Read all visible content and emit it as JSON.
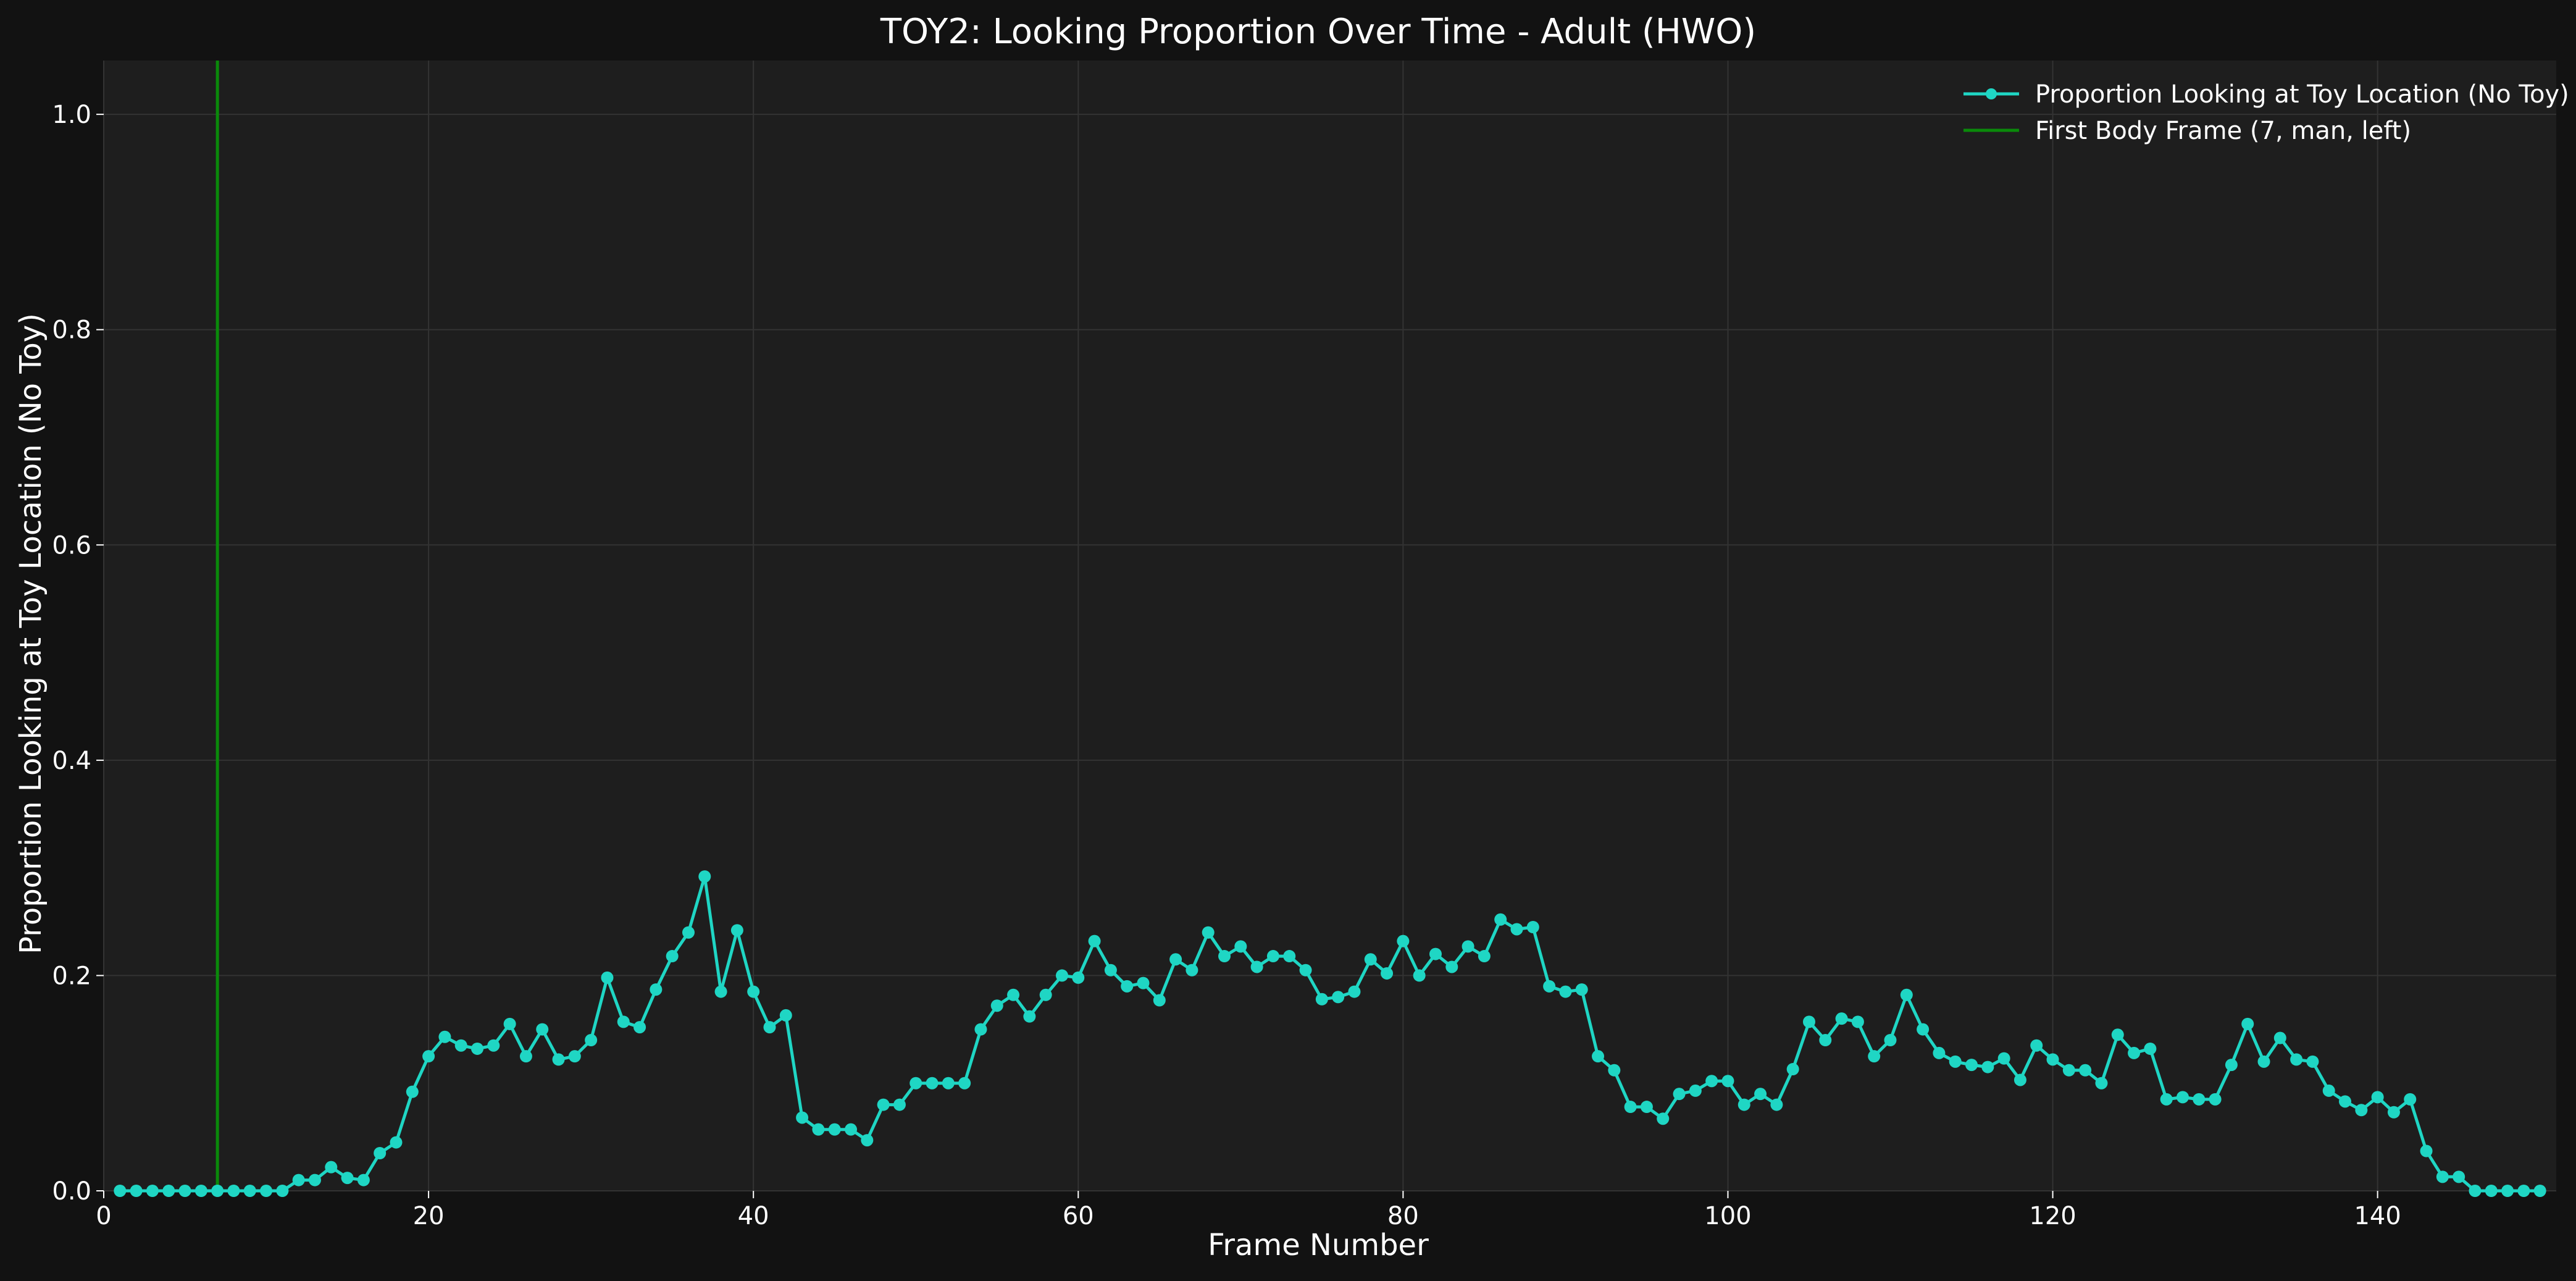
{
  "chart_data": {
    "type": "line",
    "title": "TOY2: Looking Proportion Over Time - Adult (HWO)",
    "xlabel": "Frame Number",
    "ylabel": "Proportion Looking at Toy Location (No Toy)",
    "xlim": [
      0,
      151
    ],
    "ylim": [
      0,
      1.05
    ],
    "xticks": [
      0,
      20,
      40,
      60,
      80,
      100,
      120,
      140
    ],
    "yticks": [
      0.0,
      0.2,
      0.4,
      0.6,
      0.8,
      1.0
    ],
    "xtick_labels": [
      "0",
      "20",
      "40",
      "60",
      "80",
      "100",
      "120",
      "140"
    ],
    "ytick_labels": [
      "0.0",
      "0.2",
      "0.4",
      "0.6",
      "0.8",
      "1.0"
    ],
    "grid": true,
    "legend_position": "top-right",
    "colors": {
      "background": "#121212",
      "plot_background": "#1e1e1e",
      "grid": "#333333",
      "series": "#1fd6c4",
      "vline": "#0a8a0a"
    },
    "series": [
      {
        "name": "Proportion Looking at Toy Location (No Toy)",
        "x": [
          1,
          2,
          3,
          4,
          5,
          6,
          7,
          8,
          9,
          10,
          11,
          12,
          13,
          14,
          15,
          16,
          17,
          18,
          19,
          20,
          21,
          22,
          23,
          24,
          25,
          26,
          27,
          28,
          29,
          30,
          31,
          32,
          33,
          34,
          35,
          36,
          37,
          38,
          39,
          40,
          41,
          42,
          43,
          44,
          45,
          46,
          47,
          48,
          49,
          50,
          51,
          52,
          53,
          54,
          55,
          56,
          57,
          58,
          59,
          60,
          61,
          62,
          63,
          64,
          65,
          66,
          67,
          68,
          69,
          70,
          71,
          72,
          73,
          74,
          75,
          76,
          77,
          78,
          79,
          80,
          81,
          82,
          83,
          84,
          85,
          86,
          87,
          88,
          89,
          90,
          91,
          92,
          93,
          94,
          95,
          96,
          97,
          98,
          99,
          100,
          101,
          102,
          103,
          104,
          105,
          106,
          107,
          108,
          109,
          110,
          111,
          112,
          113,
          114,
          115,
          116,
          117,
          118,
          119,
          120,
          121,
          122,
          123,
          124,
          125,
          126,
          127,
          128,
          129,
          130,
          131,
          132,
          133,
          134,
          135,
          136,
          137,
          138,
          139,
          140,
          141,
          142,
          143,
          144,
          145,
          146,
          147,
          148,
          149,
          150
        ],
        "y": [
          0,
          0,
          0,
          0,
          0,
          0,
          0,
          0,
          0,
          0,
          0,
          0.01,
          0.01,
          0.022,
          0.012,
          0.01,
          0.035,
          0.045,
          0.092,
          0.125,
          0.143,
          0.135,
          0.132,
          0.135,
          0.155,
          0.125,
          0.15,
          0.122,
          0.125,
          0.14,
          0.198,
          0.157,
          0.152,
          0.187,
          0.218,
          0.24,
          0.292,
          0.185,
          0.242,
          0.185,
          0.152,
          0.163,
          0.068,
          0.057,
          0.057,
          0.057,
          0.047,
          0.08,
          0.08,
          0.1,
          0.1,
          0.1,
          0.1,
          0.15,
          0.172,
          0.182,
          0.162,
          0.182,
          0.2,
          0.198,
          0.232,
          0.205,
          0.19,
          0.193,
          0.177,
          0.215,
          0.205,
          0.24,
          0.218,
          0.227,
          0.208,
          0.218,
          0.218,
          0.205,
          0.178,
          0.18,
          0.185,
          0.215,
          0.202,
          0.232,
          0.2,
          0.22,
          0.208,
          0.227,
          0.218,
          0.252,
          0.243,
          0.245,
          0.19,
          0.185,
          0.187,
          0.125,
          0.112,
          0.078,
          0.078,
          0.067,
          0.09,
          0.093,
          0.102,
          0.102,
          0.08,
          0.09,
          0.08,
          0.113,
          0.157,
          0.14,
          0.16,
          0.157,
          0.125,
          0.14,
          0.182,
          0.15,
          0.128,
          0.12,
          0.117,
          0.115,
          0.123,
          0.103,
          0.135,
          0.122,
          0.112,
          0.112,
          0.1,
          0.145,
          0.128,
          0.132,
          0.085,
          0.087,
          0.085,
          0.085,
          0.117,
          0.155,
          0.12,
          0.142,
          0.122,
          0.12,
          0.093,
          0.083,
          0.075,
          0.087,
          0.073,
          0.085,
          0.037,
          0.013,
          0.013,
          0,
          0,
          0,
          0,
          0
        ]
      }
    ],
    "vlines": [
      {
        "name": "First Body Frame (7, man, left)",
        "x": 7
      }
    ]
  }
}
